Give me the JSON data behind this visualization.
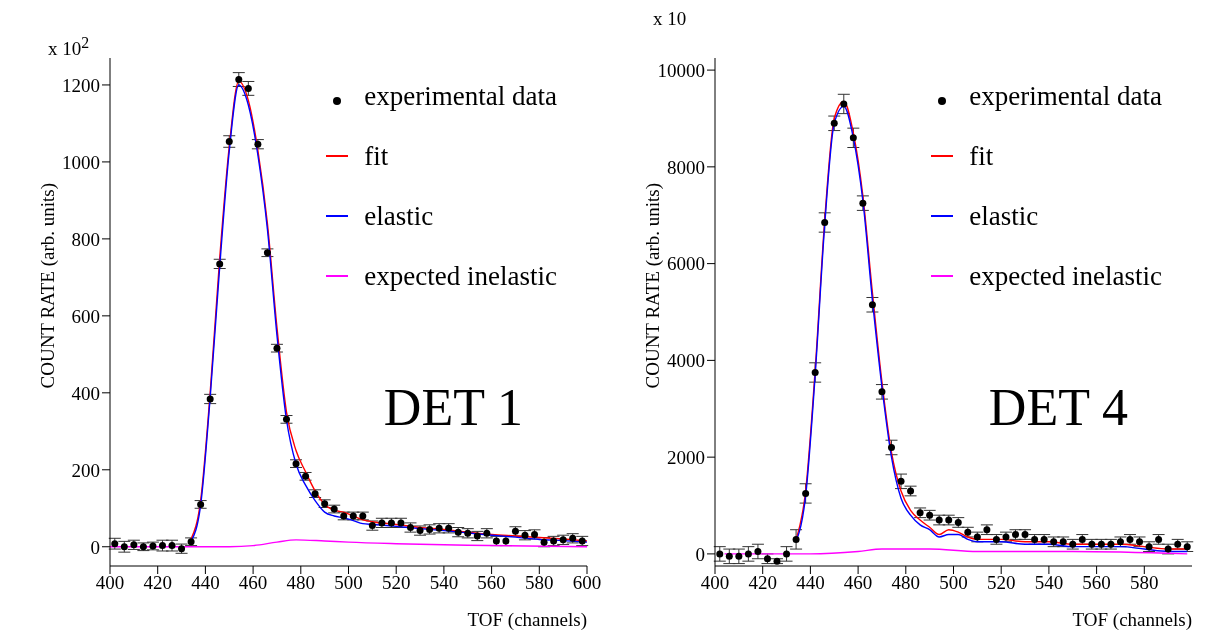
{
  "chart_data": [
    {
      "type": "scatter",
      "xlabel": "TOF (channels)",
      "ylabel": "COUNT RATE (arb. units)",
      "annotations": [
        "x 10$^{2}$",
        "DET 1"
      ],
      "xlim": [
        400,
        600
      ],
      "xticks": [
        400,
        420,
        440,
        460,
        480,
        500,
        520,
        540,
        560,
        580,
        600
      ],
      "ylim": [
        -50,
        1270
      ],
      "yticks": [
        0,
        200,
        400,
        600,
        800,
        1000,
        1200
      ],
      "grid": false,
      "legend": "top right",
      "line_style": "solid",
      "series": [
        {
          "name": "experimental data",
          "marker": "circle",
          "color": "#000000",
          "x": [
            402,
            406,
            410,
            414,
            418,
            422,
            426,
            430,
            434,
            438,
            442,
            446,
            450,
            454,
            458,
            462,
            466,
            470,
            474,
            478,
            482,
            486,
            490,
            494,
            498,
            502,
            506,
            510,
            514,
            518,
            522,
            526,
            530,
            534,
            538,
            542,
            546,
            550,
            554,
            558,
            562,
            566,
            570,
            574,
            578,
            582,
            586,
            590,
            594,
            598
          ],
          "values": [
            8,
            0,
            5,
            0,
            2,
            3,
            3,
            -5,
            13,
            110,
            384,
            735,
            1053,
            1214,
            1191,
            1046,
            764,
            516,
            331,
            216,
            183,
            138,
            112,
            98,
            80,
            80,
            80,
            55,
            62,
            62,
            62,
            50,
            42,
            45,
            48,
            48,
            38,
            35,
            28,
            35,
            15,
            15,
            40,
            30,
            32,
            12,
            15,
            18,
            22,
            15
          ],
          "errors": [
            14,
            14,
            12,
            10,
            10,
            14,
            14,
            12,
            10,
            10,
            12,
            12,
            15,
            18,
            18,
            12,
            10,
            10,
            10,
            10,
            10,
            10,
            10,
            10,
            10,
            10,
            10,
            12,
            12,
            12,
            12,
            12,
            12,
            12,
            12,
            12,
            12,
            12,
            12,
            12,
            12,
            12,
            12,
            12,
            12,
            12,
            12,
            12,
            12,
            12
          ]
        },
        {
          "name": "fit",
          "type": "line",
          "color": "#ff0000",
          "x": [
            434,
            438,
            442,
            446,
            450,
            454,
            458,
            462,
            466,
            470,
            474,
            478,
            482,
            486,
            490,
            494,
            498,
            502,
            506,
            510,
            520,
            530,
            540,
            550,
            560,
            570,
            580,
            590,
            600
          ],
          "values": [
            20,
            120,
            400,
            750,
            1040,
            1210,
            1160,
            1030,
            840,
            570,
            350,
            250,
            195,
            145,
            110,
            95,
            90,
            80,
            70,
            65,
            58,
            50,
            45,
            38,
            32,
            28,
            24,
            20,
            15
          ]
        },
        {
          "name": "elastic",
          "type": "line",
          "color": "#0000ff",
          "x": [
            434,
            438,
            442,
            446,
            450,
            454,
            458,
            462,
            466,
            470,
            474,
            478,
            482,
            486,
            490,
            494,
            498,
            502,
            506,
            510,
            520,
            530,
            540,
            550,
            560,
            570,
            580,
            590,
            600
          ],
          "values": [
            14,
            108,
            388,
            728,
            1028,
            1200,
            1148,
            1018,
            825,
            550,
            330,
            215,
            160,
            120,
            90,
            80,
            75,
            68,
            60,
            58,
            53,
            47,
            42,
            36,
            30,
            25,
            19,
            16,
            12
          ]
        },
        {
          "name": "expected inelastic",
          "type": "line",
          "color": "#ff00ff",
          "x": [
            400,
            450,
            460,
            470,
            478,
            490,
            500,
            520,
            550,
            600
          ],
          "values": [
            0,
            0,
            3,
            12,
            18,
            15,
            12,
            8,
            4,
            0
          ]
        }
      ]
    },
    {
      "type": "scatter",
      "xlabel": "TOF (channels)",
      "ylabel": "COUNT RATE (arb. units)",
      "annotations": [
        "x 10",
        "DET 4"
      ],
      "xlim": [
        400,
        600
      ],
      "xticks": [
        400,
        420,
        440,
        460,
        480,
        500,
        520,
        540,
        560,
        580
      ],
      "ylim": [
        -250,
        10250
      ],
      "yticks": [
        0,
        2000,
        4000,
        6000,
        8000,
        10000
      ],
      "grid": false,
      "legend": "top right",
      "line_style": "solid",
      "series": [
        {
          "name": "experimental data",
          "marker": "circle",
          "color": "#000000",
          "x": [
            402,
            406,
            410,
            414,
            418,
            422,
            426,
            430,
            434,
            438,
            442,
            446,
            450,
            454,
            458,
            462,
            466,
            470,
            474,
            478,
            482,
            486,
            490,
            494,
            498,
            502,
            506,
            510,
            514,
            518,
            522,
            526,
            530,
            534,
            538,
            542,
            546,
            550,
            554,
            558,
            562,
            566,
            570,
            574,
            578,
            582,
            586,
            590,
            594,
            598
          ],
          "values": [
            0,
            -50,
            -50,
            0,
            50,
            -100,
            -150,
            0,
            300,
            1250,
            3750,
            6850,
            8900,
            9300,
            8600,
            7250,
            5150,
            3350,
            2200,
            1500,
            1300,
            850,
            800,
            700,
            700,
            650,
            450,
            350,
            500,
            300,
            350,
            400,
            400,
            300,
            300,
            250,
            250,
            200,
            300,
            200,
            200,
            200,
            250,
            300,
            250,
            150,
            300,
            100,
            200,
            150
          ],
          "errors": [
            150,
            150,
            150,
            150,
            150,
            100,
            50,
            150,
            200,
            200,
            200,
            200,
            150,
            200,
            200,
            150,
            150,
            150,
            150,
            150,
            100,
            100,
            100,
            100,
            100,
            100,
            100,
            100,
            100,
            100,
            100,
            100,
            100,
            100,
            100,
            100,
            100,
            100,
            100,
            100,
            100,
            100,
            100,
            100,
            100,
            100,
            100,
            100,
            100,
            100
          ]
        },
        {
          "name": "fit",
          "type": "line",
          "color": "#ff0000",
          "x": [
            434,
            438,
            442,
            446,
            450,
            454,
            458,
            462,
            466,
            470,
            474,
            478,
            482,
            486,
            490,
            494,
            498,
            502,
            506,
            510,
            520,
            530,
            540,
            550,
            560,
            570,
            580,
            590,
            598
          ],
          "values": [
            300,
            1300,
            3800,
            6900,
            9000,
            9350,
            8700,
            7400,
            5400,
            3550,
            2100,
            1300,
            900,
            700,
            550,
            400,
            500,
            450,
            350,
            300,
            300,
            250,
            250,
            200,
            200,
            200,
            150,
            100,
            100
          ]
        },
        {
          "name": "elastic",
          "type": "line",
          "color": "#0000ff",
          "x": [
            434,
            438,
            442,
            446,
            450,
            454,
            458,
            462,
            466,
            470,
            474,
            478,
            482,
            486,
            490,
            494,
            498,
            502,
            506,
            510,
            520,
            530,
            540,
            550,
            560,
            570,
            580,
            590,
            598
          ],
          "values": [
            250,
            1200,
            3700,
            6800,
            8900,
            9250,
            8600,
            7300,
            5250,
            3450,
            2000,
            1150,
            800,
            600,
            500,
            350,
            400,
            400,
            300,
            250,
            250,
            200,
            200,
            150,
            150,
            150,
            100,
            50,
            50
          ]
        },
        {
          "name": "expected inelastic",
          "type": "line",
          "color": "#ff00ff",
          "x": [
            404,
            440,
            460,
            470,
            478,
            490,
            510,
            550,
            598
          ],
          "values": [
            0,
            0,
            50,
            100,
            100,
            100,
            50,
            50,
            0
          ]
        }
      ]
    }
  ]
}
